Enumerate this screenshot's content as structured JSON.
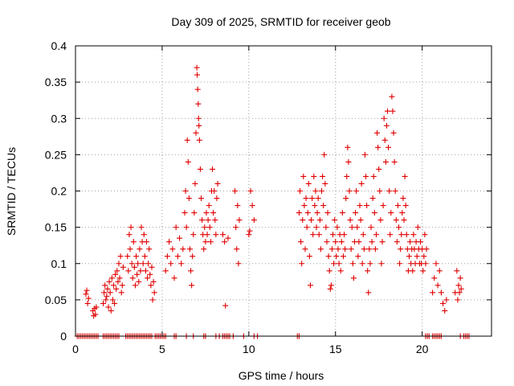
{
  "chart_data": {
    "type": "scatter",
    "title": "Day 309 of 2025, SRMTID for receiver geob",
    "xlabel": "GPS time / hours",
    "ylabel": "SRMTID / TECUs",
    "xlim": [
      0,
      24
    ],
    "ylim": [
      0,
      0.4
    ],
    "x_ticks": [
      0,
      5,
      10,
      15,
      20
    ],
    "y_ticks": [
      0,
      0.05,
      0.1,
      0.15,
      0.2,
      0.25,
      0.3,
      0.35,
      0.4
    ],
    "x_tick_labels": [
      "0",
      "5",
      "10",
      "15",
      "20"
    ],
    "y_tick_labels": [
      "0",
      "0.05",
      "0.1",
      "0.15",
      "0.2",
      "0.25",
      "0.3",
      "0.35",
      "0.4"
    ],
    "grid": true,
    "marker": "+",
    "color": "#e00000",
    "series": [
      {
        "name": "SRMTID",
        "points": [
          [
            0.6,
            0.058
          ],
          [
            0.65,
            0.063
          ],
          [
            0.7,
            0.045
          ],
          [
            0.75,
            0.052
          ],
          [
            1.0,
            0.035
          ],
          [
            1.05,
            0.028
          ],
          [
            1.1,
            0.038
          ],
          [
            1.15,
            0.03
          ],
          [
            1.2,
            0.04
          ],
          [
            1.6,
            0.045
          ],
          [
            1.65,
            0.06
          ],
          [
            1.7,
            0.07
          ],
          [
            1.75,
            0.05
          ],
          [
            1.8,
            0.055
          ],
          [
            1.85,
            0.065
          ],
          [
            1.9,
            0.04
          ],
          [
            1.95,
            0.075
          ],
          [
            2.0,
            0.06
          ],
          [
            2.05,
            0.035
          ],
          [
            2.1,
            0.08
          ],
          [
            2.15,
            0.05
          ],
          [
            2.2,
            0.07
          ],
          [
            2.25,
            0.045
          ],
          [
            2.3,
            0.085
          ],
          [
            2.35,
            0.065
          ],
          [
            2.4,
            0.09
          ],
          [
            2.45,
            0.075
          ],
          [
            2.5,
            0.1
          ],
          [
            2.55,
            0.08
          ],
          [
            2.6,
            0.11
          ],
          [
            2.65,
            0.06
          ],
          [
            2.7,
            0.07
          ],
          [
            2.75,
            0.095
          ],
          [
            3.0,
            0.11
          ],
          [
            3.05,
            0.09
          ],
          [
            3.1,
            0.14
          ],
          [
            3.15,
            0.12
          ],
          [
            3.2,
            0.15
          ],
          [
            3.25,
            0.1
          ],
          [
            3.3,
            0.08
          ],
          [
            3.35,
            0.13
          ],
          [
            3.4,
            0.095
          ],
          [
            3.45,
            0.07
          ],
          [
            3.5,
            0.11
          ],
          [
            3.55,
            0.085
          ],
          [
            3.6,
            0.1
          ],
          [
            3.65,
            0.075
          ],
          [
            3.7,
            0.12
          ],
          [
            3.75,
            0.09
          ],
          [
            3.8,
            0.15
          ],
          [
            3.85,
            0.13
          ],
          [
            3.9,
            0.1
          ],
          [
            3.95,
            0.14
          ],
          [
            4.0,
            0.11
          ],
          [
            4.05,
            0.09
          ],
          [
            4.1,
            0.13
          ],
          [
            4.15,
            0.08
          ],
          [
            4.2,
            0.1
          ],
          [
            4.25,
            0.12
          ],
          [
            4.3,
            0.085
          ],
          [
            4.35,
            0.07
          ],
          [
            4.4,
            0.095
          ],
          [
            4.45,
            0.05
          ],
          [
            4.5,
            0.075
          ],
          [
            4.55,
            0.06
          ],
          [
            5.2,
            0.09
          ],
          [
            5.3,
            0.11
          ],
          [
            5.4,
            0.13
          ],
          [
            5.5,
            0.1
          ],
          [
            5.6,
            0.12
          ],
          [
            5.7,
            0.08
          ],
          [
            5.8,
            0.15
          ],
          [
            5.9,
            0.11
          ],
          [
            6.0,
            0.135
          ],
          [
            6.1,
            0.1
          ],
          [
            6.2,
            0.12
          ],
          [
            6.3,
            0.17
          ],
          [
            6.35,
            0.2
          ],
          [
            6.4,
            0.15
          ],
          [
            6.45,
            0.27
          ],
          [
            6.5,
            0.24
          ],
          [
            6.55,
            0.19
          ],
          [
            6.6,
            0.12
          ],
          [
            6.65,
            0.09
          ],
          [
            6.7,
            0.07
          ],
          [
            6.75,
            0.11
          ],
          [
            6.8,
            0.14
          ],
          [
            6.85,
            0.17
          ],
          [
            6.9,
            0.21
          ],
          [
            6.95,
            0.28
          ],
          [
            7.0,
            0.37
          ],
          [
            7.02,
            0.36
          ],
          [
            7.05,
            0.34
          ],
          [
            7.08,
            0.32
          ],
          [
            7.1,
            0.3
          ],
          [
            7.12,
            0.29
          ],
          [
            7.15,
            0.27
          ],
          [
            7.2,
            0.23
          ],
          [
            7.25,
            0.19
          ],
          [
            7.3,
            0.16
          ],
          [
            7.35,
            0.14
          ],
          [
            7.4,
            0.12
          ],
          [
            7.45,
            0.15
          ],
          [
            7.5,
            0.13
          ],
          [
            7.55,
            0.17
          ],
          [
            7.6,
            0.14
          ],
          [
            7.65,
            0.16
          ],
          [
            7.7,
            0.18
          ],
          [
            7.75,
            0.15
          ],
          [
            7.8,
            0.13
          ],
          [
            7.85,
            0.2
          ],
          [
            7.9,
            0.23
          ],
          [
            7.95,
            0.17
          ],
          [
            8.0,
            0.2
          ],
          [
            8.05,
            0.16
          ],
          [
            8.1,
            0.14
          ],
          [
            8.15,
            0.19
          ],
          [
            8.2,
            0.21
          ],
          [
            8.5,
            0.14
          ],
          [
            8.6,
            0.13
          ],
          [
            8.65,
            0.042
          ],
          [
            8.8,
            0.135
          ],
          [
            9.2,
            0.2
          ],
          [
            9.25,
            0.15
          ],
          [
            9.3,
            0.12
          ],
          [
            9.35,
            0.18
          ],
          [
            9.4,
            0.1
          ],
          [
            9.45,
            0.16
          ],
          [
            10.0,
            0.14
          ],
          [
            10.05,
            0.145
          ],
          [
            10.1,
            0.2
          ],
          [
            10.2,
            0.18
          ],
          [
            10.3,
            0.16
          ],
          [
            12.9,
            0.17
          ],
          [
            12.95,
            0.2
          ],
          [
            13.0,
            0.13
          ],
          [
            13.05,
            0.1
          ],
          [
            13.1,
            0.16
          ],
          [
            13.15,
            0.22
          ],
          [
            13.2,
            0.18
          ],
          [
            13.25,
            0.12
          ],
          [
            13.3,
            0.19
          ],
          [
            13.35,
            0.15
          ],
          [
            13.4,
            0.17
          ],
          [
            13.45,
            0.21
          ],
          [
            13.5,
            0.11
          ],
          [
            13.55,
            0.07
          ],
          [
            13.6,
            0.16
          ],
          [
            13.65,
            0.19
          ],
          [
            13.7,
            0.14
          ],
          [
            13.75,
            0.22
          ],
          [
            13.8,
            0.18
          ],
          [
            13.85,
            0.2
          ],
          [
            13.9,
            0.15
          ],
          [
            13.95,
            0.17
          ],
          [
            14.0,
            0.19
          ],
          [
            14.05,
            0.14
          ],
          [
            14.1,
            0.16
          ],
          [
            14.15,
            0.12
          ],
          [
            14.2,
            0.2
          ],
          [
            14.25,
            0.22
          ],
          [
            14.3,
            0.18
          ],
          [
            14.35,
            0.25
          ],
          [
            14.4,
            0.21
          ],
          [
            14.45,
            0.15
          ],
          [
            14.5,
            0.13
          ],
          [
            14.55,
            0.17
          ],
          [
            14.6,
            0.11
          ],
          [
            14.65,
            0.09
          ],
          [
            14.7,
            0.065
          ],
          [
            14.75,
            0.07
          ],
          [
            14.8,
            0.12
          ],
          [
            14.85,
            0.14
          ],
          [
            14.9,
            0.1
          ],
          [
            14.95,
            0.16
          ],
          [
            15.0,
            0.13
          ],
          [
            15.05,
            0.11
          ],
          [
            15.1,
            0.15
          ],
          [
            15.15,
            0.12
          ],
          [
            15.2,
            0.1
          ],
          [
            15.25,
            0.14
          ],
          [
            15.3,
            0.09
          ],
          [
            15.35,
            0.13
          ],
          [
            15.4,
            0.17
          ],
          [
            15.45,
            0.11
          ],
          [
            15.5,
            0.14
          ],
          [
            15.55,
            0.12
          ],
          [
            15.6,
            0.19
          ],
          [
            15.65,
            0.22
          ],
          [
            15.7,
            0.26
          ],
          [
            15.75,
            0.24
          ],
          [
            15.8,
            0.2
          ],
          [
            15.85,
            0.16
          ],
          [
            15.9,
            0.12
          ],
          [
            15.95,
            0.15
          ],
          [
            16.0,
            0.1
          ],
          [
            16.05,
            0.08
          ],
          [
            16.1,
            0.13
          ],
          [
            16.15,
            0.17
          ],
          [
            16.2,
            0.2
          ],
          [
            16.25,
            0.15
          ],
          [
            16.3,
            0.11
          ],
          [
            16.35,
            0.13
          ],
          [
            16.4,
            0.18
          ],
          [
            16.45,
            0.16
          ],
          [
            16.5,
            0.21
          ],
          [
            16.55,
            0.1
          ],
          [
            16.6,
            0.14
          ],
          [
            16.65,
            0.12
          ],
          [
            16.7,
            0.25
          ],
          [
            16.75,
            0.22
          ],
          [
            16.8,
            0.18
          ],
          [
            16.85,
            0.09
          ],
          [
            16.9,
            0.06
          ],
          [
            16.95,
            0.12
          ],
          [
            17.0,
            0.1
          ],
          [
            17.05,
            0.15
          ],
          [
            17.1,
            0.13
          ],
          [
            17.15,
            0.19
          ],
          [
            17.2,
            0.22
          ],
          [
            17.25,
            0.17
          ],
          [
            17.3,
            0.12
          ],
          [
            17.35,
            0.14
          ],
          [
            17.4,
            0.28
          ],
          [
            17.45,
            0.26
          ],
          [
            17.5,
            0.23
          ],
          [
            17.55,
            0.2
          ],
          [
            17.6,
            0.16
          ],
          [
            17.65,
            0.1
          ],
          [
            17.7,
            0.13
          ],
          [
            17.75,
            0.18
          ],
          [
            17.8,
            0.3
          ],
          [
            17.85,
            0.27
          ],
          [
            17.9,
            0.24
          ],
          [
            17.95,
            0.29
          ],
          [
            18.0,
            0.31
          ],
          [
            18.05,
            0.26
          ],
          [
            18.1,
            0.2
          ],
          [
            18.15,
            0.14
          ],
          [
            18.2,
            0.17
          ],
          [
            18.25,
            0.33
          ],
          [
            18.3,
            0.31
          ],
          [
            18.35,
            0.28
          ],
          [
            18.4,
            0.24
          ],
          [
            18.45,
            0.2
          ],
          [
            18.5,
            0.16
          ],
          [
            18.55,
            0.13
          ],
          [
            18.6,
            0.18
          ],
          [
            18.65,
            0.15
          ],
          [
            18.7,
            0.1
          ],
          [
            18.75,
            0.12
          ],
          [
            18.8,
            0.14
          ],
          [
            18.85,
            0.17
          ],
          [
            18.9,
            0.19
          ],
          [
            18.95,
            0.16
          ],
          [
            19.0,
            0.22
          ],
          [
            19.05,
            0.18
          ],
          [
            19.1,
            0.14
          ],
          [
            19.15,
            0.12
          ],
          [
            19.2,
            0.09
          ],
          [
            19.25,
            0.11
          ],
          [
            19.3,
            0.13
          ],
          [
            19.35,
            0.1
          ],
          [
            19.4,
            0.12
          ],
          [
            19.45,
            0.09
          ],
          [
            19.5,
            0.14
          ],
          [
            19.55,
            0.12
          ],
          [
            19.6,
            0.1
          ],
          [
            19.65,
            0.13
          ],
          [
            19.7,
            0.11
          ],
          [
            19.75,
            0.15
          ],
          [
            19.8,
            0.12
          ],
          [
            19.85,
            0.1
          ],
          [
            19.9,
            0.13
          ],
          [
            19.95,
            0.1
          ],
          [
            20.0,
            0.12
          ],
          [
            20.05,
            0.09
          ],
          [
            20.1,
            0.11
          ],
          [
            20.15,
            0.14
          ],
          [
            20.2,
            0.1
          ],
          [
            20.25,
            0.12
          ],
          [
            20.6,
            0.06
          ],
          [
            20.7,
            0.08
          ],
          [
            20.8,
            0.1
          ],
          [
            20.9,
            0.07
          ],
          [
            21.0,
            0.09
          ],
          [
            21.1,
            0.06
          ],
          [
            21.2,
            0.045
          ],
          [
            21.3,
            0.035
          ],
          [
            21.4,
            0.05
          ],
          [
            21.9,
            0.06
          ],
          [
            22.0,
            0.09
          ],
          [
            22.05,
            0.05
          ],
          [
            22.1,
            0.07
          ],
          [
            22.15,
            0.06
          ],
          [
            22.2,
            0.08
          ],
          [
            22.25,
            0.065
          ]
        ]
      }
    ],
    "zero_points_x": [
      0.1,
      0.2,
      0.3,
      0.4,
      0.5,
      0.6,
      0.7,
      0.8,
      0.9,
      1.0,
      1.1,
      1.2,
      1.3,
      1.6,
      1.7,
      1.8,
      1.9,
      2.0,
      2.1,
      2.2,
      2.3,
      2.4,
      2.5,
      2.9,
      3.0,
      3.1,
      3.2,
      3.3,
      3.4,
      3.5,
      3.6,
      3.7,
      3.8,
      3.9,
      4.0,
      4.1,
      4.2,
      4.3,
      4.4,
      4.6,
      4.7,
      4.8,
      4.9,
      5.0,
      5.1,
      5.2,
      5.7,
      5.8,
      6.4,
      6.8,
      7.4,
      7.5,
      8.1,
      8.3,
      8.5,
      8.6,
      8.7,
      8.8,
      8.9,
      9.1,
      9.7,
      10.3,
      10.5,
      12.8,
      12.9,
      20.2,
      20.3,
      20.4,
      20.6,
      20.7,
      20.8,
      20.9,
      21.0,
      21.1,
      22.2,
      22.4,
      22.5,
      22.6,
      22.7
    ]
  }
}
